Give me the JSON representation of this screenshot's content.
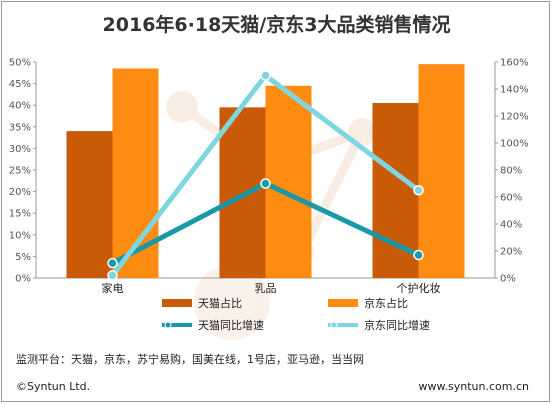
{
  "chart_data": {
    "type": "bar",
    "title": "2016年6·18天猫/京东3大品类销售情况",
    "categories": [
      "家电",
      "乳品",
      "个护化妆"
    ],
    "y_left": {
      "min": 0,
      "max": 50,
      "step": 5,
      "unit": "%"
    },
    "y_right": {
      "min": 0,
      "max": 160,
      "step": 20,
      "unit": "%"
    },
    "bar_series": [
      {
        "name": "天猫占比",
        "color": "#c85a08",
        "values": [
          34,
          39.5,
          40.5
        ]
      },
      {
        "name": "京东占比",
        "color": "#ff8c12",
        "values": [
          48.5,
          44.5,
          49.5
        ]
      }
    ],
    "line_series": [
      {
        "name": "天猫同比增速",
        "color": "#1a98a8",
        "values": [
          11,
          70,
          17
        ]
      },
      {
        "name": "京东同比增速",
        "color": "#7fd6e0",
        "values": [
          2,
          150,
          65
        ]
      }
    ],
    "legend_position": "bottom",
    "grid": false
  },
  "footer": {
    "source": "监测平台：天猫，京东，苏宁易购，国美在线，1号店，亚马逊，当当网",
    "copyright": "©Syntun Ltd.",
    "website": "www.syntun.com.cn"
  }
}
